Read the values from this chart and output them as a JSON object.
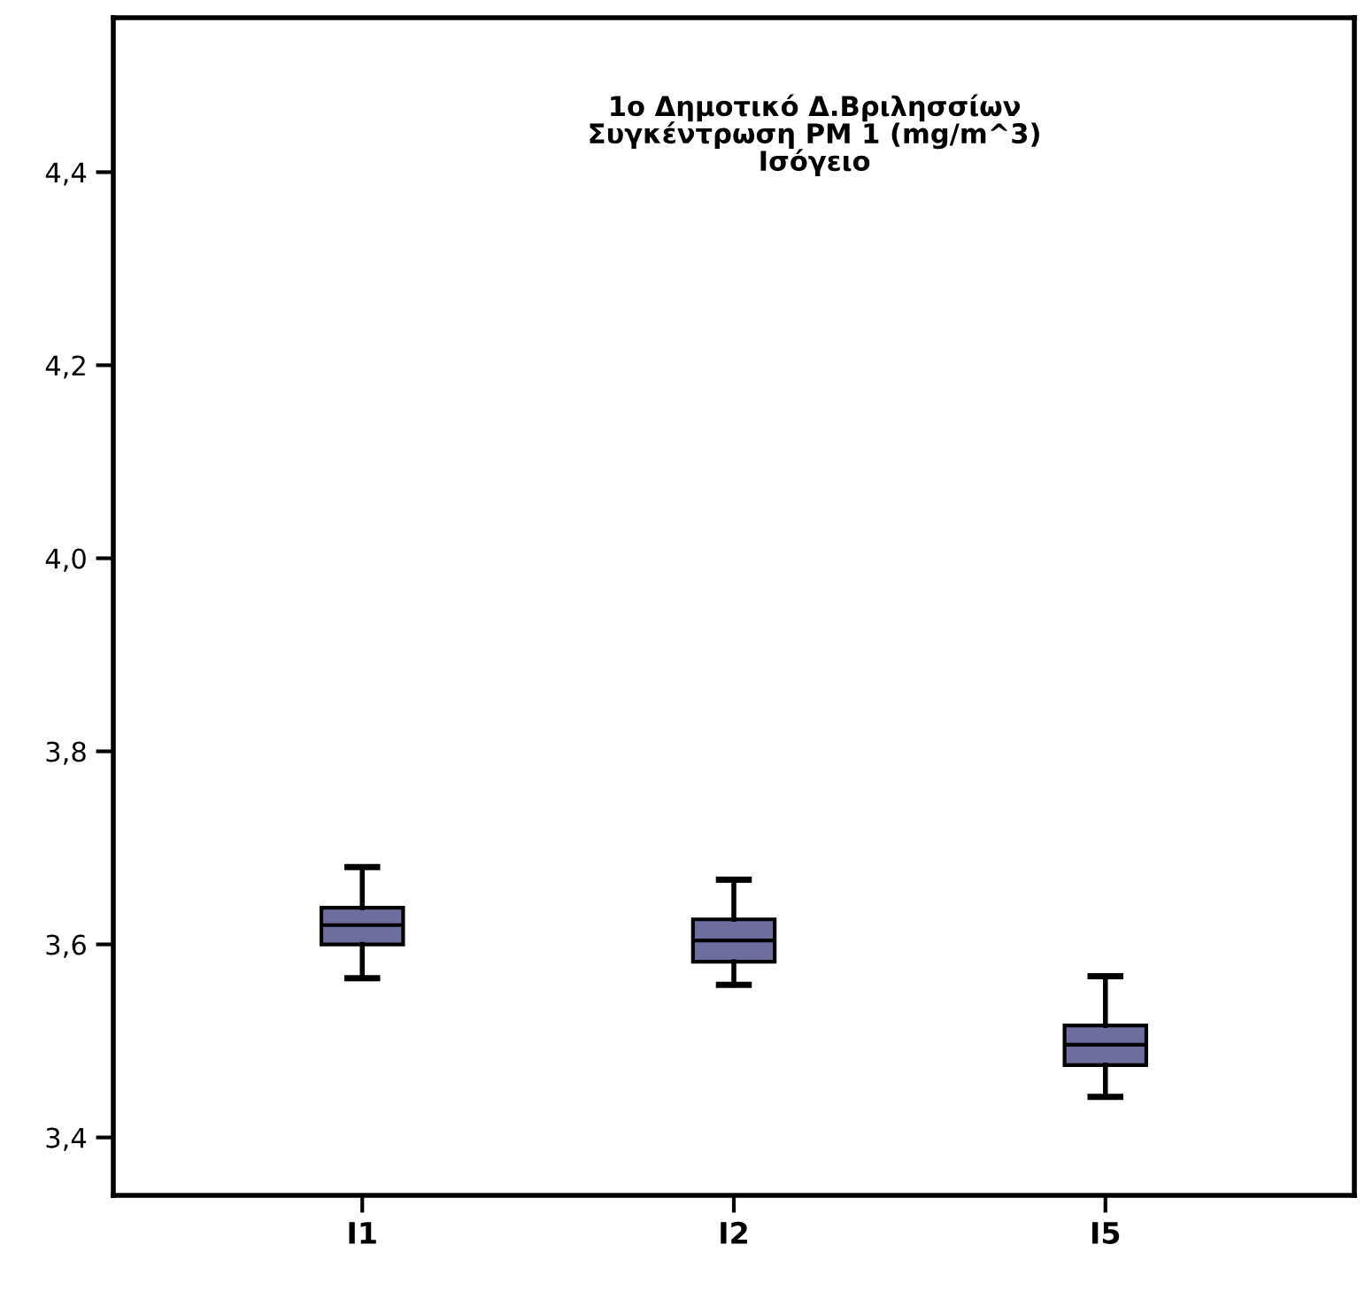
{
  "chart_data": {
    "type": "box",
    "title": "1ο Δημοτικό Δ.Βριλησσίων\nΣυγκέντρωση PM 1 (mg/m^3)\nΙσόγειο",
    "categories": [
      "I1",
      "I2",
      "I5"
    ],
    "color": "#6e6e9e",
    "boxes": [
      {
        "low": 3.565,
        "q1": 3.6,
        "median": 3.62,
        "q3": 3.638,
        "high": 3.68
      },
      {
        "low": 3.558,
        "q1": 3.582,
        "median": 3.604,
        "q3": 3.626,
        "high": 3.667
      },
      {
        "low": 3.442,
        "q1": 3.475,
        "median": 3.496,
        "q3": 3.516,
        "high": 3.567
      }
    ],
    "ylim": [
      3.34,
      4.56
    ],
    "yticks": [
      {
        "value": 3.4,
        "label": "3,4"
      },
      {
        "value": 3.6,
        "label": "3,6"
      },
      {
        "value": 3.8,
        "label": "3,8"
      },
      {
        "value": 4.0,
        "label": "4,0"
      },
      {
        "value": 4.2,
        "label": "4,2"
      },
      {
        "value": 4.4,
        "label": "4,4"
      }
    ],
    "grid": false
  }
}
